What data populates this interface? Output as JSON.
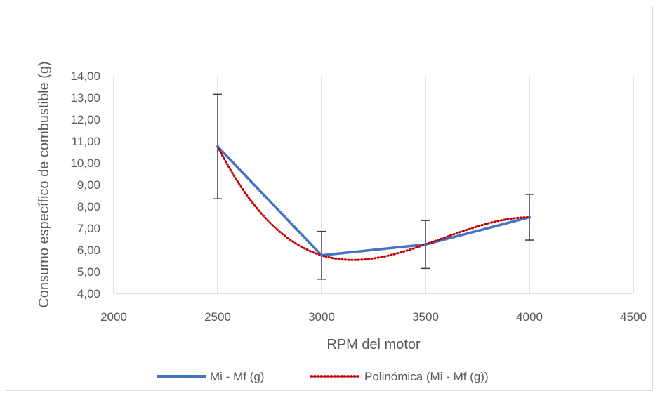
{
  "chart_data": {
    "type": "line",
    "title": "",
    "xlabel": "RPM del motor",
    "ylabel": "Consumo específico de combustible (g)",
    "xlim": [
      2000,
      4500
    ],
    "ylim": [
      4,
      14
    ],
    "x_ticks": [
      "2000",
      "2500",
      "3000",
      "3500",
      "4000",
      "4500"
    ],
    "y_ticks": [
      "4,00",
      "5,00",
      "6,00",
      "7,00",
      "8,00",
      "9,00",
      "10,00",
      "11,00",
      "12,00",
      "13,00",
      "14,00"
    ],
    "grid": "vertical",
    "legend_position": "bottom",
    "series": [
      {
        "name": "Mi - Mf (g)",
        "color": "#4472C4",
        "style": "solid",
        "x": [
          2500,
          3000,
          3500,
          4000
        ],
        "y": [
          10.75,
          5.75,
          6.25,
          7.5
        ],
        "error_low": [
          8.35,
          4.65,
          5.15,
          6.45
        ],
        "error_high": [
          13.15,
          6.85,
          7.35,
          8.55
        ]
      },
      {
        "name": "Polinómica (Mi - Mf (g))",
        "color": "#C00000",
        "style": "dotted",
        "trendline": "polynomial",
        "x": [
          2500,
          3000,
          3500,
          4000
        ],
        "y": [
          10.75,
          5.75,
          6.25,
          7.5
        ]
      }
    ]
  }
}
